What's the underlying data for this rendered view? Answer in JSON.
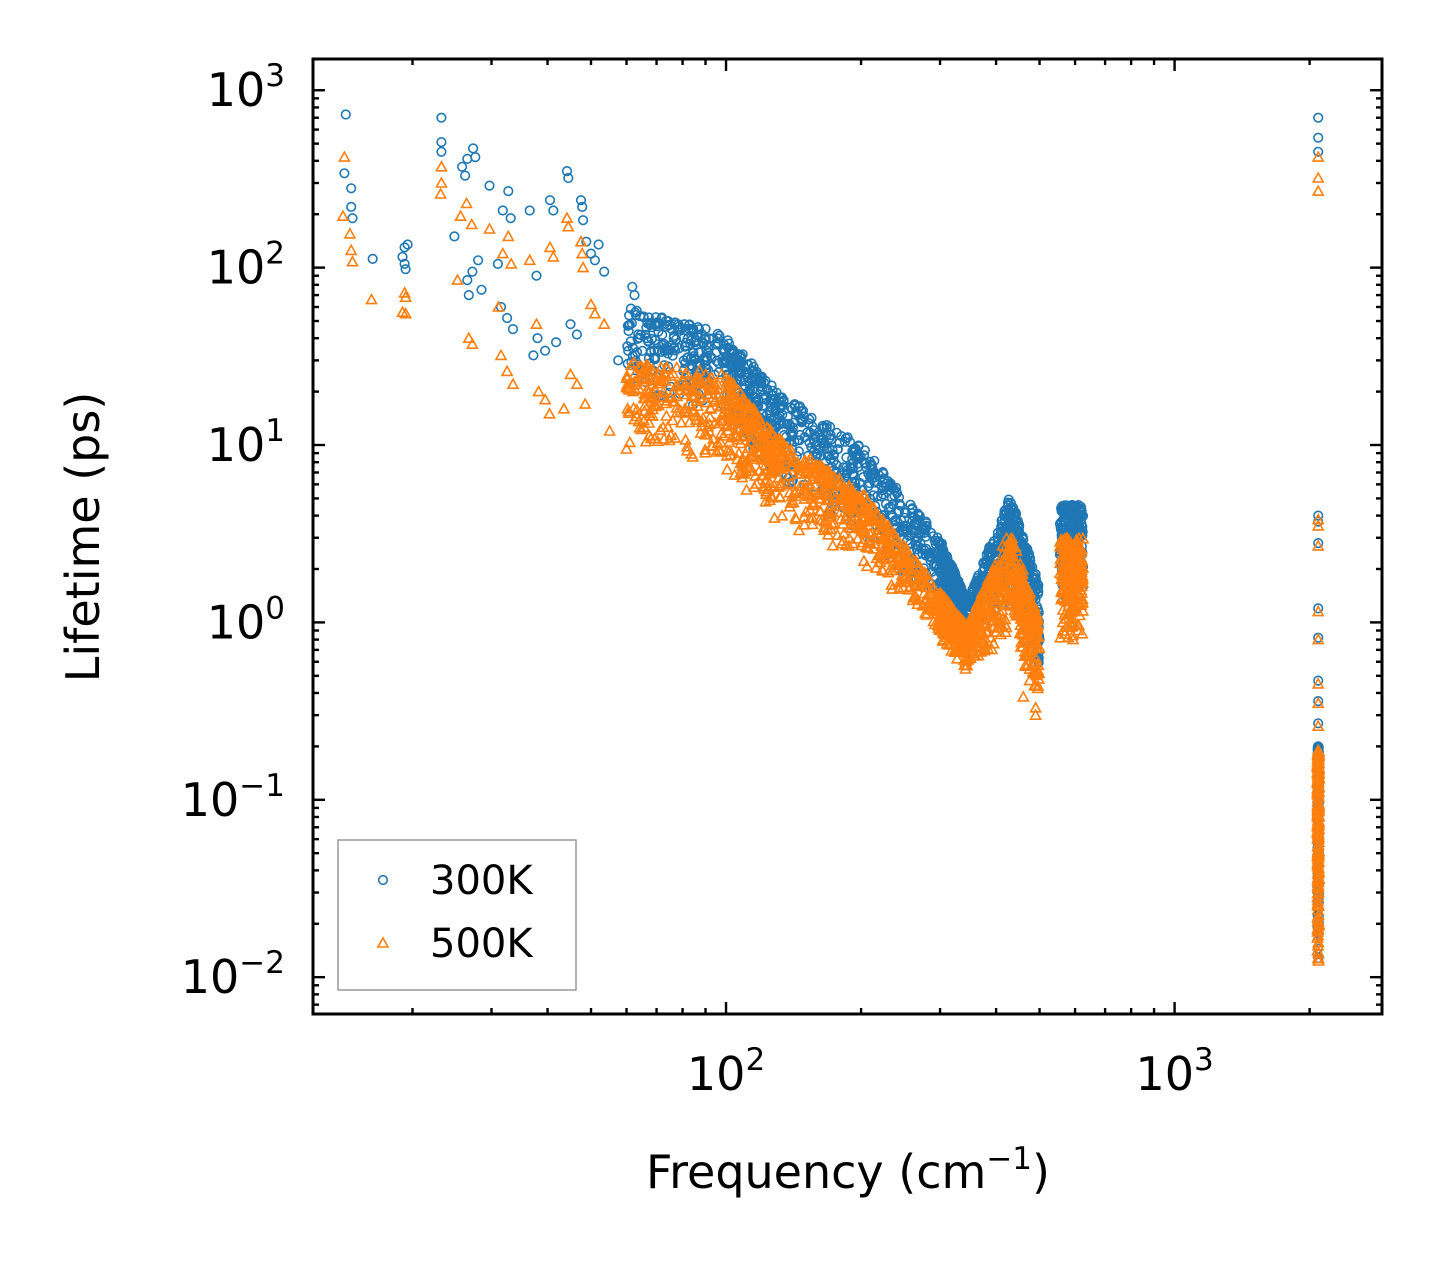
{
  "chart_data": {
    "type": "scatter",
    "title": "",
    "xlabel": "Frequency (cm",
    "xlabel_sup": "−1",
    "xlabel_close": ")",
    "ylabel": "Lifetime (ps)",
    "xscale": "log",
    "yscale": "log",
    "xlim": [
      12,
      2900
    ],
    "ylim": [
      0.0062,
      1500
    ],
    "x_ticks": [
      {
        "value": 100,
        "base": "10",
        "exp": "2"
      },
      {
        "value": 1000,
        "base": "10",
        "exp": "3"
      }
    ],
    "y_ticks": [
      {
        "value": 0.01,
        "base": "10",
        "exp": "−2"
      },
      {
        "value": 0.1,
        "base": "10",
        "exp": "−1"
      },
      {
        "value": 1,
        "base": "10",
        "exp": "0"
      },
      {
        "value": 10,
        "base": "10",
        "exp": "1"
      },
      {
        "value": 100,
        "base": "10",
        "exp": "2"
      },
      {
        "value": 1000,
        "base": "10",
        "exp": "3"
      }
    ],
    "legend_position": "lower-left",
    "series": [
      {
        "name": "300K",
        "marker": "circle",
        "color": "#1f77b4",
        "points": [
          [
            14.2,
            730
          ],
          [
            14.1,
            340
          ],
          [
            14.6,
            280
          ],
          [
            14.6,
            220
          ],
          [
            14.7,
            190
          ],
          [
            16.3,
            112
          ],
          [
            19.2,
            130
          ],
          [
            19.5,
            135
          ],
          [
            19.0,
            115
          ],
          [
            19.2,
            105
          ],
          [
            19.3,
            98
          ],
          [
            23.2,
            700
          ],
          [
            23.2,
            510
          ],
          [
            23.2,
            450
          ],
          [
            24.8,
            150
          ],
          [
            25.8,
            370
          ],
          [
            26.2,
            330
          ],
          [
            26.5,
            410
          ],
          [
            27.3,
            470
          ],
          [
            27.6,
            420
          ],
          [
            26.5,
            85
          ],
          [
            26.7,
            70
          ],
          [
            27.2,
            95
          ],
          [
            28.0,
            110
          ],
          [
            28.5,
            75
          ],
          [
            29.7,
            290
          ],
          [
            31.0,
            105
          ],
          [
            31.8,
            210
          ],
          [
            32.7,
            270
          ],
          [
            33.1,
            190
          ],
          [
            31.5,
            60
          ],
          [
            32.5,
            52
          ],
          [
            33.5,
            45
          ],
          [
            36.5,
            210
          ],
          [
            37.8,
            90
          ],
          [
            38.0,
            40
          ],
          [
            39.5,
            34
          ],
          [
            40.5,
            240
          ],
          [
            41.2,
            210
          ],
          [
            44.2,
            350
          ],
          [
            44.5,
            320
          ],
          [
            47.5,
            240
          ],
          [
            47.8,
            220
          ],
          [
            48.0,
            185
          ],
          [
            45.0,
            48
          ],
          [
            46.5,
            42
          ],
          [
            50.0,
            120
          ],
          [
            51.0,
            110
          ],
          [
            53.5,
            95
          ],
          [
            37.2,
            32
          ],
          [
            41.8,
            38
          ],
          [
            48.8,
            140
          ],
          [
            52.0,
            135
          ],
          [
            57.5,
            30
          ],
          [
            61.8,
            78
          ],
          [
            62.5,
            70
          ],
          [
            2090,
            700
          ],
          [
            2090,
            540
          ],
          [
            2090,
            450
          ],
          [
            2090,
            4.0
          ],
          [
            2090,
            3.7
          ],
          [
            2090,
            2.8
          ],
          [
            2090,
            1.2
          ],
          [
            2090,
            0.82
          ],
          [
            2090,
            0.47
          ],
          [
            2090,
            0.36
          ],
          [
            2090,
            0.27
          ],
          [
            2090,
            0.2
          ]
        ],
        "bands": [
          {
            "x": [
              60,
              100
            ],
            "upper": [
              60,
              42
            ],
            "lower": [
              20,
              14
            ]
          },
          {
            "x": [
              100,
              130
            ],
            "upper": [
              42,
              20
            ],
            "lower": [
              14,
              6
            ]
          },
          {
            "x": [
              130,
              200
            ],
            "upper": [
              20,
              10
            ],
            "lower": [
              6,
              3
            ]
          },
          {
            "x": [
              200,
              300
            ],
            "upper": [
              10,
              3
            ],
            "lower": [
              3,
              1.2
            ]
          },
          {
            "x": [
              300,
              345
            ],
            "upper": [
              3,
              1.3
            ],
            "lower": [
              1.2,
              0.85
            ]
          },
          {
            "x": [
              345,
              430
            ],
            "upper": [
              1.3,
              5.2
            ],
            "lower": [
              0.85,
              1.2
            ]
          },
          {
            "x": [
              430,
              500
            ],
            "upper": [
              5.2,
              1.6
            ],
            "lower": [
              1.2,
              0.55
            ]
          },
          {
            "x": [
              555,
              625
            ],
            "upper": [
              4.6,
              4.6
            ],
            "lower": [
              1.3,
              1.2
            ]
          },
          {
            "x": [
              2082,
              2098
            ],
            "upper": [
              0.2,
              0.2
            ],
            "lower": [
              0.012,
              0.012
            ]
          }
        ]
      },
      {
        "name": "500K",
        "marker": "triangle",
        "color": "#ff7f0e",
        "points": [
          [
            14.1,
            420
          ],
          [
            14.0,
            195
          ],
          [
            14.5,
            155
          ],
          [
            14.6,
            125
          ],
          [
            14.7,
            108
          ],
          [
            16.2,
            66
          ],
          [
            19.2,
            72
          ],
          [
            19.3,
            68
          ],
          [
            19.0,
            56
          ],
          [
            19.3,
            55
          ],
          [
            23.2,
            370
          ],
          [
            23.2,
            300
          ],
          [
            23.1,
            260
          ],
          [
            25.6,
            195
          ],
          [
            26.4,
            230
          ],
          [
            27.1,
            175
          ],
          [
            25.2,
            85
          ],
          [
            26.7,
            40
          ],
          [
            27.2,
            37
          ],
          [
            29.7,
            165
          ],
          [
            31.1,
            60
          ],
          [
            31.8,
            120
          ],
          [
            32.7,
            150
          ],
          [
            33.2,
            105
          ],
          [
            31.5,
            32
          ],
          [
            32.5,
            26
          ],
          [
            33.5,
            22
          ],
          [
            36.5,
            110
          ],
          [
            37.8,
            48
          ],
          [
            38.2,
            20
          ],
          [
            39.5,
            18
          ],
          [
            40.5,
            130
          ],
          [
            41.2,
            115
          ],
          [
            44.2,
            190
          ],
          [
            44.5,
            170
          ],
          [
            47.5,
            140
          ],
          [
            47.8,
            120
          ],
          [
            48.0,
            100
          ],
          [
            45.0,
            25
          ],
          [
            46.5,
            22
          ],
          [
            50.0,
            62
          ],
          [
            51.0,
            55
          ],
          [
            53.5,
            48
          ],
          [
            40.4,
            15
          ],
          [
            43.5,
            16
          ],
          [
            48.5,
            17
          ],
          [
            55.0,
            12
          ],
          [
            60.0,
            9.5
          ],
          [
            2090,
            420
          ],
          [
            2090,
            320
          ],
          [
            2090,
            270
          ],
          [
            2090,
            3.8
          ],
          [
            2090,
            3.5
          ],
          [
            2090,
            2.7
          ],
          [
            2090,
            1.15
          ],
          [
            2090,
            0.8
          ],
          [
            2090,
            0.45
          ],
          [
            2090,
            0.35
          ],
          [
            2090,
            0.26
          ],
          [
            2090,
            0.19
          ],
          [
            460,
            0.38
          ],
          [
            490,
            0.33
          ],
          [
            490,
            0.3
          ],
          [
            475,
            0.47
          ]
        ],
        "bands": [
          {
            "x": [
              60,
              100
            ],
            "upper": [
              30,
              25
            ],
            "lower": [
              10,
              7
            ]
          },
          {
            "x": [
              100,
              130
            ],
            "upper": [
              25,
              11
            ],
            "lower": [
              7,
              3.5
            ]
          },
          {
            "x": [
              130,
              200
            ],
            "upper": [
              11,
              5.5
            ],
            "lower": [
              3.5,
              2.2
            ]
          },
          {
            "x": [
              200,
              300
            ],
            "upper": [
              5.5,
              1.5
            ],
            "lower": [
              2.2,
              0.8
            ]
          },
          {
            "x": [
              300,
              345
            ],
            "upper": [
              1.5,
              0.95
            ],
            "lower": [
              0.8,
              0.5
            ]
          },
          {
            "x": [
              345,
              430
            ],
            "upper": [
              0.95,
              3.4
            ],
            "lower": [
              0.5,
              0.8
            ]
          },
          {
            "x": [
              430,
              500
            ],
            "upper": [
              3.4,
              1.0
            ],
            "lower": [
              0.8,
              0.35
            ]
          },
          {
            "x": [
              555,
              625
            ],
            "upper": [
              3.0,
              3.0
            ],
            "lower": [
              0.7,
              0.7
            ]
          },
          {
            "x": [
              2082,
              2098
            ],
            "upper": [
              0.19,
              0.19
            ],
            "lower": [
              0.011,
              0.011
            ]
          }
        ]
      }
    ]
  }
}
